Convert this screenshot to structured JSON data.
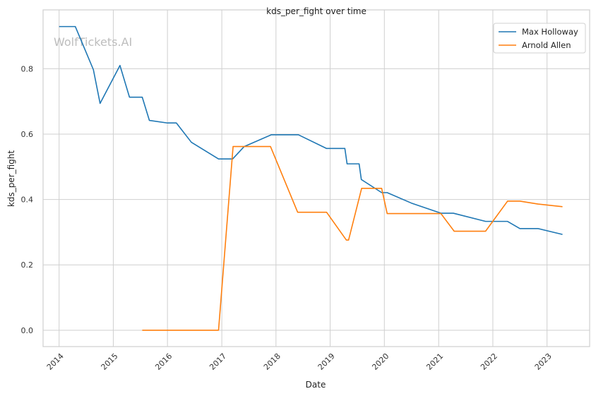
{
  "chart_data": {
    "type": "line",
    "title": "kds_per_fight over time",
    "xlabel": "Date",
    "ylabel": "kds_per_fight",
    "watermark": "WolfTickets.AI",
    "x_ticks": [
      "2014",
      "2015",
      "2016",
      "2017",
      "2018",
      "2019",
      "2020",
      "2021",
      "2022",
      "2023"
    ],
    "y_ticks": [
      "0.0",
      "0.2",
      "0.4",
      "0.6",
      "0.8"
    ],
    "xlim": [
      "2013-09-15",
      "2023-10-15"
    ],
    "ylim": [
      -0.05,
      0.98
    ],
    "grid": true,
    "legend_position": "top-right",
    "series": [
      {
        "name": "Max Holloway",
        "color": "#1f77b4",
        "points": [
          [
            "2014-01-01",
            0.929
          ],
          [
            "2014-04-20",
            0.929
          ],
          [
            "2014-08-20",
            0.797
          ],
          [
            "2014-10-04",
            0.694
          ],
          [
            "2015-02-15",
            0.81
          ],
          [
            "2015-04-20",
            0.713
          ],
          [
            "2015-07-15",
            0.713
          ],
          [
            "2015-09-01",
            0.642
          ],
          [
            "2016-01-01",
            0.634
          ],
          [
            "2016-03-01",
            0.634
          ],
          [
            "2016-06-10",
            0.575
          ],
          [
            "2016-12-10",
            0.524
          ],
          [
            "2017-03-15",
            0.524
          ],
          [
            "2017-06-01",
            0.562
          ],
          [
            "2017-12-01",
            0.598
          ],
          [
            "2018-06-01",
            0.598
          ],
          [
            "2018-12-08",
            0.556
          ],
          [
            "2019-04-10",
            0.556
          ],
          [
            "2019-04-25",
            0.509
          ],
          [
            "2019-07-15",
            0.509
          ],
          [
            "2019-07-30",
            0.461
          ],
          [
            "2019-12-14",
            0.421
          ],
          [
            "2020-01-20",
            0.421
          ],
          [
            "2020-07-01",
            0.389
          ],
          [
            "2021-01-16",
            0.358
          ],
          [
            "2021-04-10",
            0.358
          ],
          [
            "2021-11-13",
            0.333
          ],
          [
            "2022-04-10",
            0.333
          ],
          [
            "2022-07-02",
            0.311
          ],
          [
            "2022-11-01",
            0.311
          ],
          [
            "2023-04-15",
            0.293
          ]
        ]
      },
      {
        "name": "Arnold Allen",
        "color": "#ff7f0e",
        "points": [
          [
            "2015-07-15",
            0.0
          ],
          [
            "2016-12-10",
            0.0
          ],
          [
            "2017-03-18",
            0.562
          ],
          [
            "2017-11-25",
            0.562
          ],
          [
            "2018-05-27",
            0.361
          ],
          [
            "2018-12-08",
            0.361
          ],
          [
            "2019-04-20",
            0.276
          ],
          [
            "2019-05-05",
            0.276
          ],
          [
            "2019-08-01",
            0.434
          ],
          [
            "2019-12-14",
            0.434
          ],
          [
            "2020-01-20",
            0.357
          ],
          [
            "2021-01-16",
            0.357
          ],
          [
            "2021-04-15",
            0.303
          ],
          [
            "2021-11-13",
            0.303
          ],
          [
            "2022-04-10",
            0.395
          ],
          [
            "2022-07-02",
            0.395
          ],
          [
            "2022-11-01",
            0.386
          ],
          [
            "2023-04-15",
            0.378
          ]
        ]
      }
    ]
  }
}
